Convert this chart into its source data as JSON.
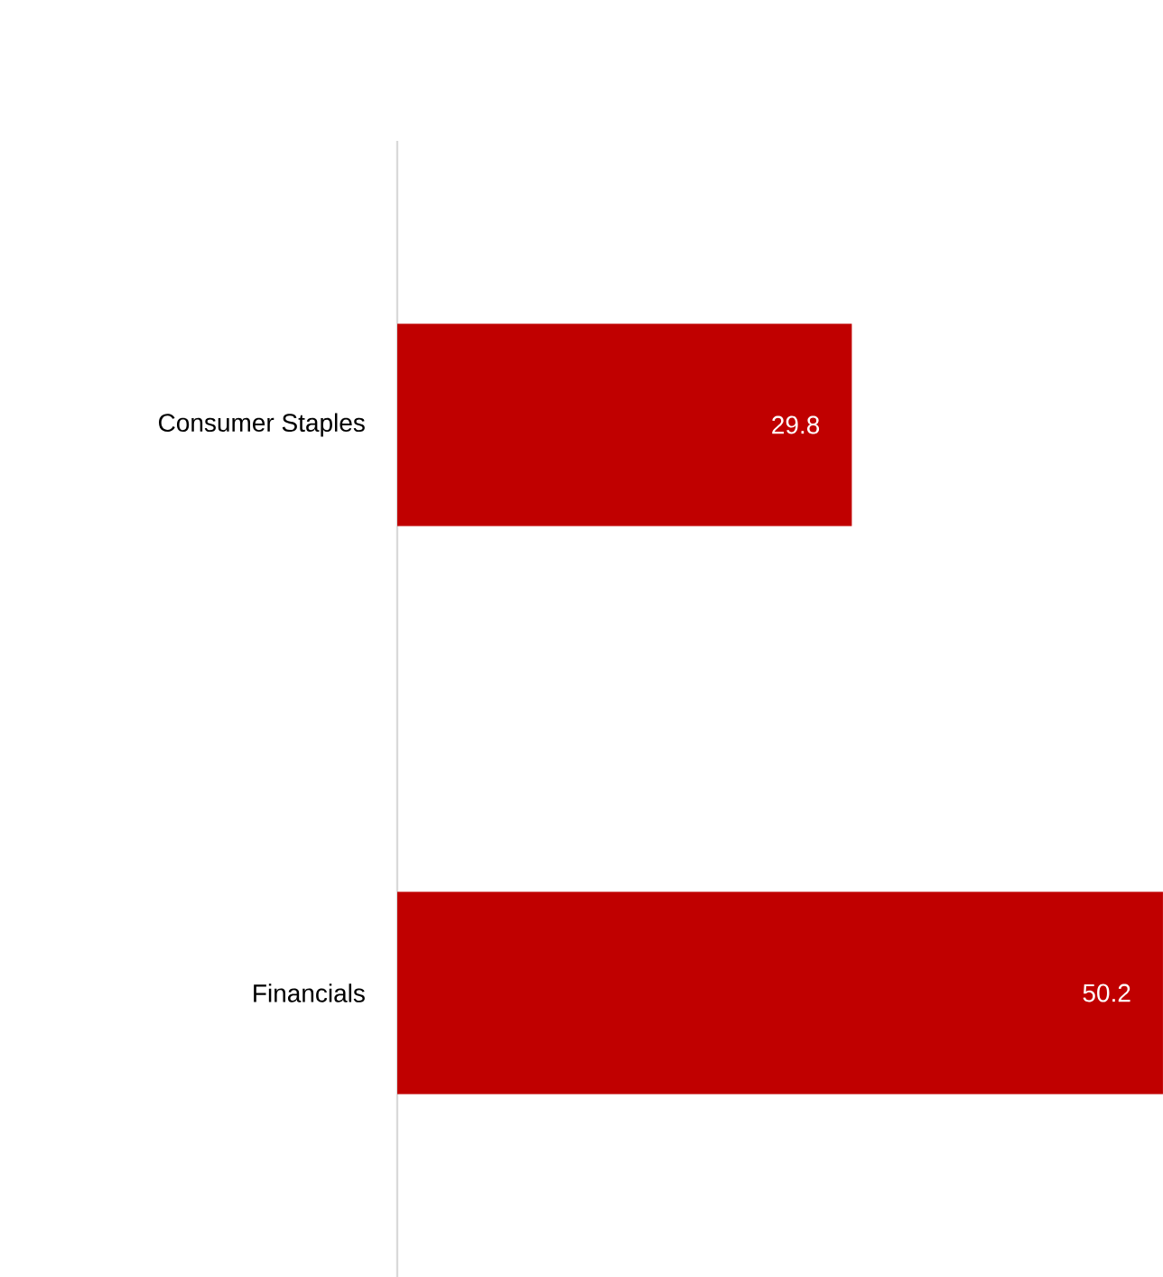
{
  "chart_data": {
    "type": "bar",
    "orientation": "horizontal",
    "categories": [
      "Consumer Staples",
      "Financials"
    ],
    "values": [
      29.8,
      50.2
    ],
    "color": "#c00000",
    "data_labels": true
  }
}
